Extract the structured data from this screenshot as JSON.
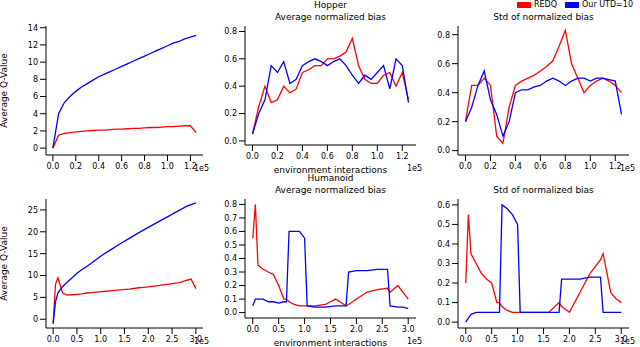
{
  "chart_data": [
    {
      "type": "line",
      "ylabel": "Average Q-Value",
      "annotations": [
        "1e5"
      ],
      "x": [
        0,
        0.05,
        0.1,
        0.15,
        0.2,
        0.25,
        0.3,
        0.35,
        0.4,
        0.45,
        0.5,
        0.55,
        0.6,
        0.65,
        0.7,
        0.75,
        0.8,
        0.85,
        0.9,
        0.95,
        1.0,
        1.05,
        1.1,
        1.15,
        1.2,
        1.25
      ],
      "xlim": [
        -0.06,
        1.31
      ],
      "xticks": [
        {
          "value": 0,
          "label": "0.0"
        },
        {
          "value": 0.2,
          "label": "0.2"
        },
        {
          "value": 0.4,
          "label": "0.4"
        },
        {
          "value": 0.6,
          "label": "0.6"
        },
        {
          "value": 0.8,
          "label": "0.8"
        },
        {
          "value": 1.0,
          "label": "1.0"
        },
        {
          "value": 1.2,
          "label": "1.2"
        }
      ],
      "ylim": [
        -0.8,
        14.2
      ],
      "yticks": [
        0,
        2,
        4,
        6,
        8,
        10,
        12,
        14
      ],
      "series": [
        {
          "name": "REDQ",
          "color": "#ff0000",
          "values": [
            0,
            1.5,
            1.7,
            1.8,
            1.9,
            1.95,
            2.0,
            2.05,
            2.1,
            2.1,
            2.15,
            2.2,
            2.2,
            2.25,
            2.3,
            2.3,
            2.35,
            2.4,
            2.4,
            2.45,
            2.5,
            2.5,
            2.55,
            2.6,
            2.6,
            1.8
          ]
        },
        {
          "name": "Our UTD=10",
          "color": "#0000ff",
          "values": [
            0,
            4,
            5.3,
            6,
            6.6,
            7.1,
            7.5,
            7.9,
            8.3,
            8.6,
            8.9,
            9.2,
            9.5,
            9.8,
            10.1,
            10.4,
            10.7,
            11,
            11.3,
            11.6,
            11.9,
            12.2,
            12.4,
            12.7,
            12.9,
            13.1
          ]
        }
      ]
    },
    {
      "type": "line",
      "title": "Hopper",
      "subtitle": "Average normalized bias",
      "xlabel": "environment interactions",
      "annotations": [
        "1e5"
      ],
      "x": [
        0,
        0.05,
        0.1,
        0.15,
        0.2,
        0.25,
        0.3,
        0.35,
        0.4,
        0.45,
        0.5,
        0.55,
        0.6,
        0.65,
        0.7,
        0.75,
        0.8,
        0.85,
        0.9,
        0.95,
        1.0,
        1.05,
        1.1,
        1.15,
        1.2,
        1.25
      ],
      "xlim": [
        -0.06,
        1.31
      ],
      "xticks": [
        {
          "value": 0,
          "label": "0.0"
        },
        {
          "value": 0.2,
          "label": "0.2"
        },
        {
          "value": 0.4,
          "label": "0.4"
        },
        {
          "value": 0.6,
          "label": "0.6"
        },
        {
          "value": 0.8,
          "label": "0.8"
        },
        {
          "value": 1.0,
          "label": "1.0"
        },
        {
          "value": 1.2,
          "label": "1.2"
        }
      ],
      "ylim": [
        -0.03,
        0.84
      ],
      "yticks": [
        {
          "value": 0,
          "label": "0.0"
        },
        {
          "value": 0.2,
          "label": "0.2"
        },
        {
          "value": 0.4,
          "label": "0.4"
        },
        {
          "value": 0.6,
          "label": "0.6"
        },
        {
          "value": 0.8,
          "label": "0.8"
        }
      ],
      "series": [
        {
          "name": "REDQ",
          "color": "#ff0000",
          "values": [
            0.05,
            0.25,
            0.4,
            0.28,
            0.3,
            0.4,
            0.35,
            0.38,
            0.5,
            0.52,
            0.55,
            0.55,
            0.6,
            0.6,
            0.62,
            0.65,
            0.75,
            0.55,
            0.45,
            0.42,
            0.42,
            0.48,
            0.5,
            0.4,
            0.5,
            0.3
          ]
        },
        {
          "name": "Our UTD=10",
          "color": "#0000ff",
          "values": [
            0.05,
            0.2,
            0.3,
            0.55,
            0.5,
            0.58,
            0.42,
            0.45,
            0.55,
            0.58,
            0.6,
            0.58,
            0.55,
            0.58,
            0.6,
            0.55,
            0.48,
            0.42,
            0.48,
            0.45,
            0.5,
            0.55,
            0.38,
            0.6,
            0.55,
            0.28
          ]
        }
      ]
    },
    {
      "type": "line",
      "subtitle": "Std of normalized bias",
      "legend": "upper right",
      "annotations": [
        "1e5"
      ],
      "x": [
        0,
        0.05,
        0.1,
        0.15,
        0.2,
        0.25,
        0.3,
        0.35,
        0.4,
        0.45,
        0.5,
        0.55,
        0.6,
        0.65,
        0.7,
        0.75,
        0.8,
        0.85,
        0.9,
        0.95,
        1.0,
        1.05,
        1.1,
        1.15,
        1.2,
        1.25
      ],
      "xlim": [
        -0.06,
        1.31
      ],
      "xticks": [
        {
          "value": 0,
          "label": "0.0"
        },
        {
          "value": 0.2,
          "label": "0.2"
        },
        {
          "value": 0.4,
          "label": "0.4"
        },
        {
          "value": 0.6,
          "label": "0.6"
        },
        {
          "value": 0.8,
          "label": "0.8"
        },
        {
          "value": 1.0,
          "label": "1.0"
        },
        {
          "value": 1.2,
          "label": "1.2"
        }
      ],
      "ylim": [
        -0.03,
        0.86
      ],
      "yticks": [
        {
          "value": 0,
          "label": "0.0"
        },
        {
          "value": 0.2,
          "label": "0.2"
        },
        {
          "value": 0.4,
          "label": "0.4"
        },
        {
          "value": 0.6,
          "label": "0.6"
        },
        {
          "value": 0.8,
          "label": "0.8"
        }
      ],
      "series": [
        {
          "name": "REDQ",
          "color": "#ff0000",
          "values": [
            0.2,
            0.45,
            0.45,
            0.5,
            0.45,
            0.1,
            0.05,
            0.3,
            0.45,
            0.48,
            0.5,
            0.52,
            0.55,
            0.58,
            0.62,
            0.72,
            0.83,
            0.6,
            0.5,
            0.4,
            0.45,
            0.48,
            0.5,
            0.48,
            0.45,
            0.4
          ]
        },
        {
          "name": "Our UTD=10",
          "color": "#0000ff",
          "values": [
            0.2,
            0.3,
            0.45,
            0.55,
            0.35,
            0.25,
            0.1,
            0.2,
            0.4,
            0.42,
            0.42,
            0.44,
            0.45,
            0.48,
            0.5,
            0.48,
            0.45,
            0.48,
            0.5,
            0.5,
            0.48,
            0.5,
            0.5,
            0.49,
            0.48,
            0.25
          ]
        }
      ]
    },
    {
      "type": "line",
      "ylabel": "Average Q-Value",
      "annotations": [
        "1e5"
      ],
      "x": [
        0,
        0.05,
        0.1,
        0.2,
        0.3,
        0.4,
        0.5,
        0.6,
        0.65,
        0.7,
        0.8,
        0.9,
        1.0,
        1.05,
        1.2,
        1.4,
        1.6,
        1.8,
        1.85,
        2.0,
        2.2,
        2.4,
        2.6,
        2.65,
        2.8,
        2.9,
        3.0
      ],
      "xlim": [
        -0.15,
        3.15
      ],
      "xticks": [
        {
          "value": 0,
          "label": "0.0"
        },
        {
          "value": 0.5,
          "label": "0.5"
        },
        {
          "value": 1.0,
          "label": "1.0"
        },
        {
          "value": 1.5,
          "label": "1.5"
        },
        {
          "value": 2.0,
          "label": "2.0"
        },
        {
          "value": 2.5,
          "label": "2.5"
        },
        {
          "value": 3.0,
          "label": "3.0"
        }
      ],
      "ylim": [
        -2,
        27.5
      ],
      "yticks": [
        0,
        5,
        10,
        15,
        20,
        25
      ],
      "series": [
        {
          "name": "REDQ",
          "color": "#ff0000",
          "values": [
            -1,
            8,
            9.5,
            6,
            5.5,
            5.6,
            5.7,
            5.8,
            5.9,
            6,
            6.1,
            6.2,
            6.3,
            6.35,
            6.5,
            6.7,
            6.9,
            7.2,
            7.25,
            7.4,
            7.7,
            8,
            8.3,
            8.4,
            8.9,
            9.2,
            7
          ]
        },
        {
          "name": "Our UTD=10",
          "color": "#0000ff",
          "values": [
            -1,
            4,
            6,
            7.5,
            8.5,
            9.5,
            10.5,
            11.3,
            11.7,
            12,
            12.8,
            13.6,
            14.4,
            14.8,
            15.8,
            17.2,
            18.5,
            19.8,
            20.1,
            21,
            22.2,
            23.4,
            24.6,
            24.9,
            25.8,
            26.2,
            26.6
          ]
        }
      ]
    },
    {
      "type": "line",
      "title": "Humanoid",
      "subtitle": "Average normalized bias",
      "xlabel": "environment interactions",
      "annotations": [
        "1e5"
      ],
      "x": [
        0,
        0.05,
        0.1,
        0.2,
        0.3,
        0.4,
        0.5,
        0.6,
        0.65,
        0.7,
        0.8,
        0.9,
        1.0,
        1.05,
        1.2,
        1.4,
        1.6,
        1.8,
        1.85,
        2.0,
        2.2,
        2.4,
        2.6,
        2.65,
        2.8,
        2.9,
        3.0
      ],
      "xlim": [
        -0.15,
        3.15
      ],
      "xticks": [
        {
          "value": 0,
          "label": "0.0"
        },
        {
          "value": 0.5,
          "label": "0.5"
        },
        {
          "value": 1.0,
          "label": "1.0"
        },
        {
          "value": 1.5,
          "label": "1.5"
        },
        {
          "value": 2.0,
          "label": "2.0"
        },
        {
          "value": 2.5,
          "label": "2.5"
        },
        {
          "value": 3.0,
          "label": "3.0"
        }
      ],
      "ylim": [
        -0.04,
        0.84
      ],
      "yticks": [
        {
          "value": 0,
          "label": "0.0"
        },
        {
          "value": 0.1,
          "label": "0.1"
        },
        {
          "value": 0.2,
          "label": "0.2"
        },
        {
          "value": 0.3,
          "label": "0.3"
        },
        {
          "value": 0.4,
          "label": "0.4"
        },
        {
          "value": 0.5,
          "label": "0.5"
        },
        {
          "value": 0.6,
          "label": "0.6"
        },
        {
          "value": 0.7,
          "label": "0.7"
        },
        {
          "value": 0.8,
          "label": "0.8"
        }
      ],
      "series": [
        {
          "name": "REDQ",
          "color": "#ff0000",
          "values": [
            0.55,
            0.8,
            0.35,
            0.32,
            0.3,
            0.28,
            0.2,
            0.1,
            0.1,
            0.08,
            0.06,
            0.05,
            0.05,
            0.05,
            0.05,
            0.06,
            0.1,
            0.05,
            0.06,
            0.1,
            0.15,
            0.17,
            0.18,
            0.15,
            0.2,
            0.15,
            0.1
          ]
        },
        {
          "name": "Our UTD=10",
          "color": "#0000ff",
          "values": [
            0.05,
            0.1,
            0.1,
            0.1,
            0.08,
            0.08,
            0.07,
            0.08,
            0.08,
            0.6,
            0.6,
            0.6,
            0.55,
            0.05,
            0.04,
            0.04,
            0.05,
            0.05,
            0.3,
            0.31,
            0.31,
            0.32,
            0.32,
            0.05,
            0.04,
            0.04,
            0.03
          ]
        }
      ]
    },
    {
      "type": "line",
      "subtitle": "Std of normalized bias",
      "annotations": [
        "1e5"
      ],
      "x": [
        0,
        0.05,
        0.1,
        0.2,
        0.3,
        0.4,
        0.5,
        0.6,
        0.65,
        0.7,
        0.8,
        0.9,
        1.0,
        1.05,
        1.2,
        1.4,
        1.6,
        1.8,
        1.85,
        2.0,
        2.2,
        2.4,
        2.6,
        2.65,
        2.8,
        2.9,
        3.0
      ],
      "xlim": [
        -0.15,
        3.15
      ],
      "xticks": [
        {
          "value": 0,
          "label": "0.0"
        },
        {
          "value": 0.5,
          "label": "0.5"
        },
        {
          "value": 1.0,
          "label": "1.0"
        },
        {
          "value": 1.5,
          "label": "1.5"
        },
        {
          "value": 2.0,
          "label": "2.0"
        },
        {
          "value": 2.5,
          "label": "2.5"
        },
        {
          "value": 3.0,
          "label": "3.0"
        }
      ],
      "ylim": [
        -0.03,
        0.63
      ],
      "yticks": [
        {
          "value": 0,
          "label": "0.0"
        },
        {
          "value": 0.1,
          "label": "0.1"
        },
        {
          "value": 0.2,
          "label": "0.2"
        },
        {
          "value": 0.3,
          "label": "0.3"
        },
        {
          "value": 0.4,
          "label": "0.4"
        },
        {
          "value": 0.5,
          "label": "0.5"
        },
        {
          "value": 0.6,
          "label": "0.6"
        }
      ],
      "series": [
        {
          "name": "REDQ",
          "color": "#ff0000",
          "values": [
            0.2,
            0.55,
            0.35,
            0.3,
            0.25,
            0.22,
            0.2,
            0.1,
            0.1,
            0.08,
            0.06,
            0.05,
            0.05,
            0.05,
            0.05,
            0.05,
            0.05,
            0.1,
            0.08,
            0.05,
            0.15,
            0.25,
            0.32,
            0.35,
            0.15,
            0.12,
            0.1
          ]
        },
        {
          "name": "Our UTD=10",
          "color": "#0000ff",
          "values": [
            0.0,
            0.02,
            0.04,
            0.05,
            0.05,
            0.05,
            0.05,
            0.05,
            0.05,
            0.6,
            0.58,
            0.55,
            0.5,
            0.05,
            0.05,
            0.05,
            0.05,
            0.05,
            0.22,
            0.22,
            0.22,
            0.23,
            0.23,
            0.05,
            0.05,
            0.05,
            0.05
          ]
        }
      ]
    }
  ]
}
